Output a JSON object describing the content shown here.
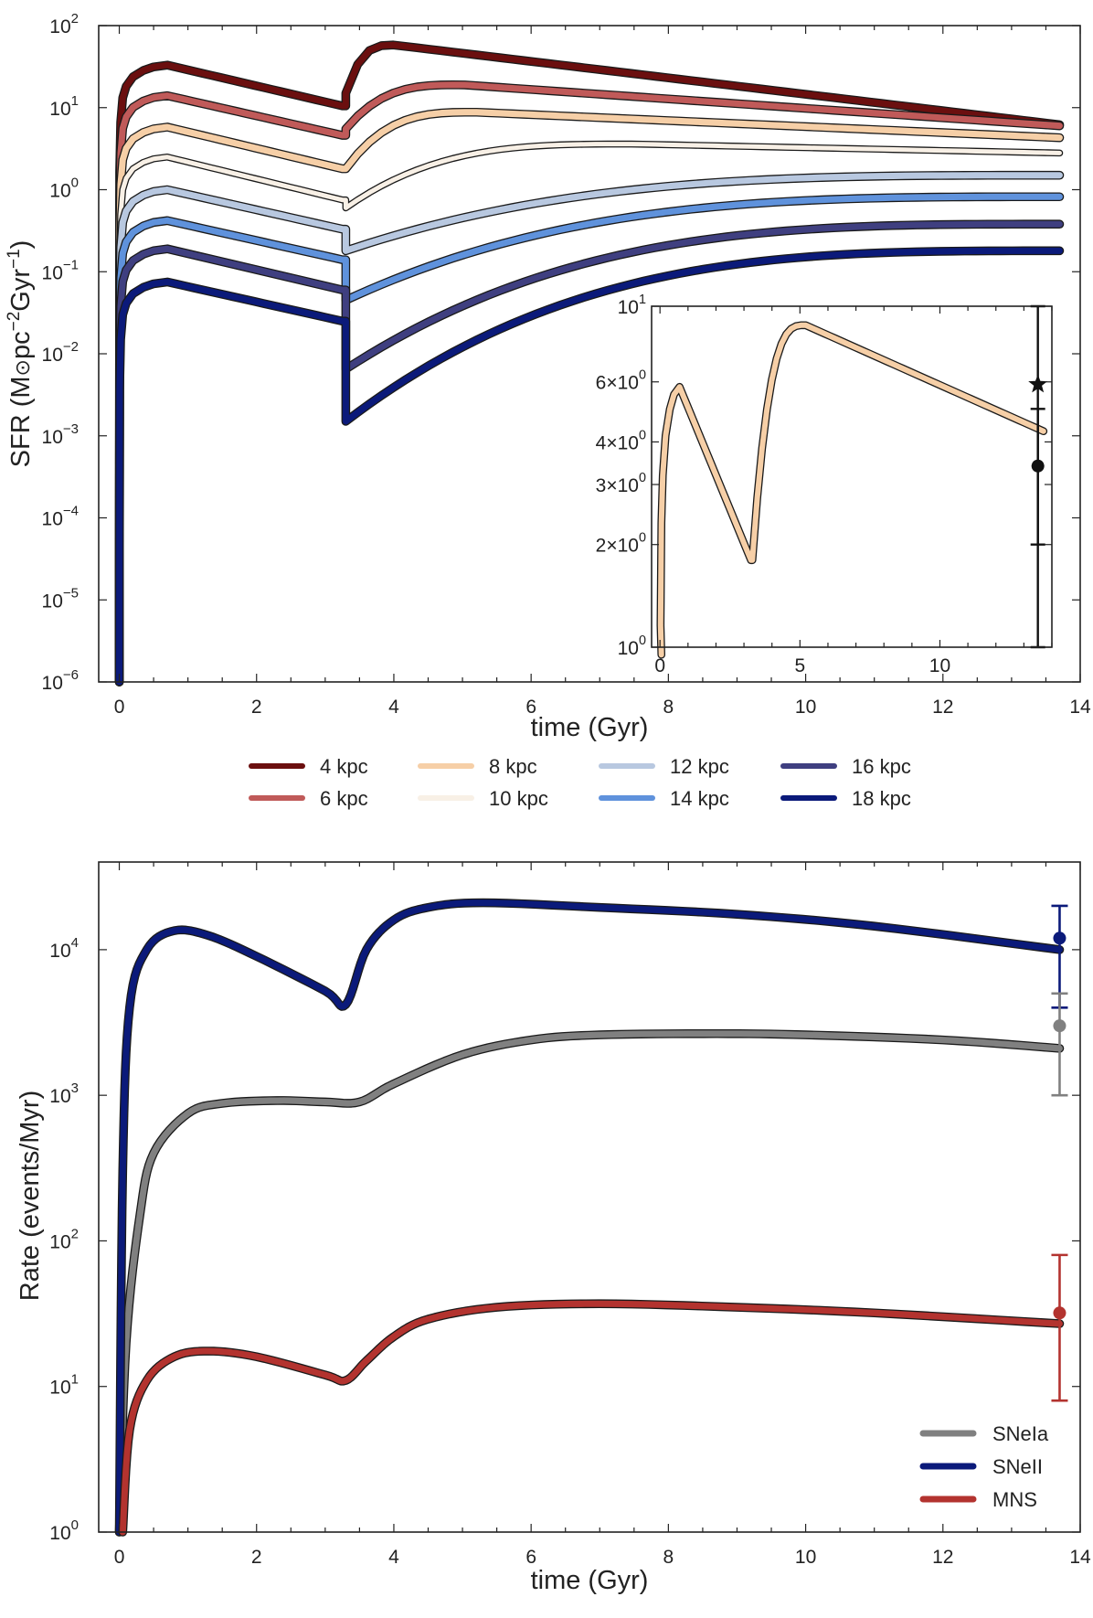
{
  "chart_data": [
    {
      "type": "line",
      "name": "sfr",
      "ylabel": "SFR (M⊙pc⁻²Gyr⁻¹)",
      "ylabel_parts": [
        "SFR (M",
        "⊙",
        "pc",
        "−2",
        "Gyr",
        "−1",
        ")"
      ],
      "xlabel": "time (Gyr)",
      "yscale": "log",
      "xlim": [
        -0.3,
        14
      ],
      "ylim": [
        1e-06,
        100
      ],
      "xticks": [
        0,
        2,
        4,
        6,
        8,
        10,
        12,
        14
      ],
      "yticks": [
        {
          "value": 1e-06,
          "base": "10",
          "exp": "−6"
        },
        {
          "value": 1e-05,
          "base": "10",
          "exp": "−5"
        },
        {
          "value": 0.0001,
          "base": "10",
          "exp": "−4"
        },
        {
          "value": 0.001,
          "base": "10",
          "exp": "−3"
        },
        {
          "value": 0.01,
          "base": "10",
          "exp": "−2"
        },
        {
          "value": 0.1,
          "base": "10",
          "exp": "−1"
        },
        {
          "value": 1,
          "base": "10",
          "exp": "0"
        },
        {
          "value": 10,
          "base": "10",
          "exp": "1"
        },
        {
          "value": 100,
          "base": "10",
          "exp": "2"
        }
      ],
      "series": [
        {
          "name": "4 kpc",
          "color": "#6b0f0f",
          "peak1": 33,
          "dip": 10.5,
          "postdip": 15,
          "peak2": 58,
          "t_peak2": 4.0,
          "end": 6.2,
          "width": 7
        },
        {
          "name": "6 kpc",
          "color": "#c05a59",
          "peak1": 14,
          "dip": 4.6,
          "postdip": 5.5,
          "peak2": 19,
          "t_peak2": 5.0,
          "end": 6.0,
          "width": 7
        },
        {
          "name": "8 kpc",
          "color": "#f6cfa7",
          "peak1": 5.8,
          "dip": 1.8,
          "postdip": 1.8,
          "peak2": 8.8,
          "t_peak2": 5.2,
          "end": 4.3,
          "width": 7
        },
        {
          "name": "10 kpc",
          "color": "#f8f0e6",
          "peak1": 2.5,
          "dip": 0.75,
          "postdip": 0.6,
          "peak2": 3.6,
          "t_peak2": 7.5,
          "end": 2.8,
          "width": 5
        },
        {
          "name": "12 kpc",
          "color": "#b8c8e0",
          "peak1": 1.0,
          "dip": 0.33,
          "postdip": 0.18,
          "peak2": 1.5,
          "t_peak2": 13.7,
          "end": 1.5,
          "width": 7
        },
        {
          "name": "14 kpc",
          "color": "#5f92dc",
          "peak1": 0.42,
          "dip": 0.14,
          "postdip": 0.045,
          "peak2": 0.82,
          "t_peak2": 13.7,
          "end": 0.82,
          "width": 7
        },
        {
          "name": "16 kpc",
          "color": "#3f3f80",
          "peak1": 0.19,
          "dip": 0.06,
          "postdip": 0.0065,
          "peak2": 0.38,
          "t_peak2": 13.7,
          "end": 0.38,
          "width": 7
        },
        {
          "name": "18 kpc",
          "color": "#0b1a7a",
          "peak1": 0.075,
          "dip": 0.025,
          "postdip": 0.0015,
          "peak2": 0.18,
          "t_peak2": 13.7,
          "end": 0.18,
          "width": 7
        }
      ],
      "inset": {
        "xlim": [
          -0.3,
          14
        ],
        "ylim": [
          1,
          10
        ],
        "xticks": [
          0,
          5,
          10
        ],
        "yticks": [
          {
            "value": 1,
            "base": "10",
            "exp": "0"
          },
          {
            "value": 2,
            "label": "2×10",
            "exp": "0"
          },
          {
            "value": 3,
            "label": "3×10",
            "exp": "0"
          },
          {
            "value": 4,
            "label": "4×10",
            "exp": "0"
          },
          {
            "value": 6,
            "label": "6×10",
            "exp": "0"
          },
          {
            "value": 10,
            "base": "10",
            "exp": "1"
          }
        ],
        "series": "8 kpc",
        "observations": [
          {
            "marker": "star",
            "x": 13.5,
            "y": 5.9,
            "ylow": 1.0,
            "yhigh": 10.0
          },
          {
            "marker": "circle",
            "x": 13.5,
            "y": 3.4,
            "ylow": 2.0,
            "yhigh": 5.0
          }
        ]
      }
    },
    {
      "type": "line",
      "name": "rates",
      "ylabel": "Rate (events/Myr)",
      "xlabel": "time (Gyr)",
      "yscale": "log",
      "xlim": [
        -0.3,
        14
      ],
      "ylim": [
        1,
        40000
      ],
      "xticks": [
        0,
        2,
        4,
        6,
        8,
        10,
        12,
        14
      ],
      "yticks": [
        {
          "value": 1,
          "base": "10",
          "exp": "0"
        },
        {
          "value": 10,
          "base": "10",
          "exp": "1"
        },
        {
          "value": 100,
          "base": "10",
          "exp": "2"
        },
        {
          "value": 1000,
          "base": "10",
          "exp": "3"
        },
        {
          "value": 10000,
          "base": "10",
          "exp": "4"
        }
      ],
      "series": [
        {
          "name": "SNeIa",
          "color": "#808080",
          "points": [
            [
              0,
              1
            ],
            [
              0.1,
              20
            ],
            [
              0.3,
              150
            ],
            [
              0.5,
              400
            ],
            [
              1,
              750
            ],
            [
              1.5,
              880
            ],
            [
              2.3,
              920
            ],
            [
              3,
              900
            ],
            [
              3.5,
              900
            ],
            [
              4,
              1200
            ],
            [
              5,
              1900
            ],
            [
              6,
              2400
            ],
            [
              7,
              2600
            ],
            [
              8.7,
              2650
            ],
            [
              10,
              2600
            ],
            [
              12,
              2400
            ],
            [
              13.7,
              2100
            ]
          ]
        },
        {
          "name": "SNeII",
          "color": "#0b1a7a",
          "points": [
            [
              0,
              1
            ],
            [
              0.05,
              300
            ],
            [
              0.15,
              4000
            ],
            [
              0.4,
              10000
            ],
            [
              0.8,
              13500
            ],
            [
              1.3,
              12500
            ],
            [
              2,
              9000
            ],
            [
              3,
              5200
            ],
            [
              3.3,
              4200
            ],
            [
              3.6,
              10000
            ],
            [
              4,
              16000
            ],
            [
              4.5,
              19500
            ],
            [
              5.3,
              21000
            ],
            [
              7,
              19500
            ],
            [
              9,
              17500
            ],
            [
              11,
              14500
            ],
            [
              13.7,
              10000
            ]
          ]
        },
        {
          "name": "MNS",
          "color": "#b3332f",
          "points": [
            [
              0.05,
              1
            ],
            [
              0.15,
              5
            ],
            [
              0.4,
              11
            ],
            [
              0.8,
              16
            ],
            [
              1.3,
              17.5
            ],
            [
              2,
              16
            ],
            [
              3,
              12
            ],
            [
              3.3,
              11
            ],
            [
              3.6,
              15
            ],
            [
              4,
              22
            ],
            [
              4.5,
              29
            ],
            [
              5.5,
              35
            ],
            [
              7,
              37
            ],
            [
              9,
              35
            ],
            [
              11,
              32
            ],
            [
              13.7,
              27
            ]
          ]
        }
      ],
      "observations": [
        {
          "series": "SNeII",
          "color": "#0b1a7a",
          "x": 13.7,
          "y": 12000,
          "ylow": 4000,
          "yhigh": 20000
        },
        {
          "series": "SNeIa",
          "color": "#808080",
          "x": 13.7,
          "y": 3000,
          "ylow": 1000,
          "yhigh": 5000
        },
        {
          "series": "MNS",
          "color": "#b3332f",
          "x": 13.7,
          "y": 32,
          "ylow": 8,
          "yhigh": 80
        }
      ],
      "legend": {
        "placement": "bottom-right",
        "entries": [
          "SNeIa",
          "SNeII",
          "MNS"
        ]
      }
    }
  ],
  "legend_top": {
    "placement": "below-chart",
    "entries": [
      "4 kpc",
      "8 kpc",
      "12 kpc",
      "16 kpc",
      "6 kpc",
      "10 kpc",
      "14 kpc",
      "18 kpc"
    ]
  }
}
